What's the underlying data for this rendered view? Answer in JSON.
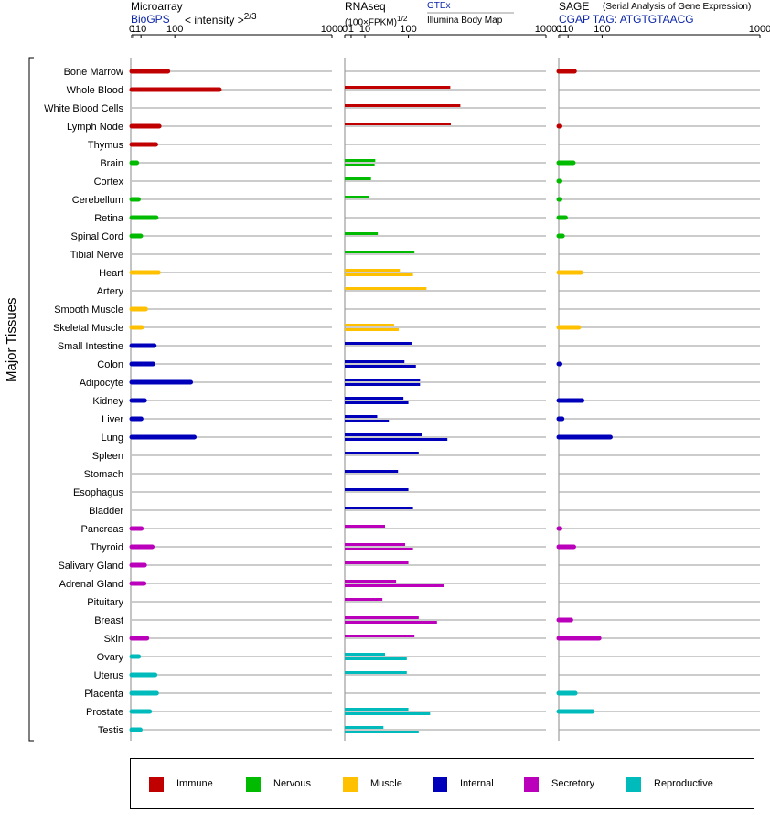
{
  "panels": {
    "microarray": {
      "title": "Microarray",
      "source": "BioGPS",
      "unit": "< intensity >",
      "unit_exp": "2/3"
    },
    "rnaseq": {
      "title": "RNAseq",
      "unit": "(100×FPKM)",
      "unit_exp": "1/2",
      "source_top": "GTEx",
      "source_bottom": "Illumina Body Map"
    },
    "sage": {
      "title": "SAGE",
      "subtitle": "(Serial Analysis of Gene Expression)",
      "tag": "CGAP TAG: ATGTGTAACG"
    }
  },
  "y_axis_label": "Major Tissues",
  "legend": [
    {
      "label": "Immune",
      "color": "#c00000"
    },
    {
      "label": "Nervous",
      "color": "#00bb00"
    },
    {
      "label": "Muscle",
      "color": "#ffc000"
    },
    {
      "label": "Internal",
      "color": "#0000bb"
    },
    {
      "label": "Secretory",
      "color": "#bb00bb"
    },
    {
      "label": "Reproductive",
      "color": "#00bbbb"
    }
  ],
  "chart_data": [
    {
      "type": "bar",
      "title": "Microarray",
      "scale": "power-2/3",
      "ticks": [
        0,
        1,
        10,
        100,
        1000
      ],
      "xlim": [
        0,
        1000
      ],
      "categories": [
        "Bone Marrow",
        "Whole Blood",
        "White Blood Cells",
        "Lymph Node",
        "Thymus",
        "Brain",
        "Cortex",
        "Cerebellum",
        "Retina",
        "Spinal Cord",
        "Tibial Nerve",
        "Heart",
        "Artery",
        "Smooth Muscle",
        "Skeletal Muscle",
        "Small Intestine",
        "Colon",
        "Adipocyte",
        "Kidney",
        "Liver",
        "Lung",
        "Spleen",
        "Stomach",
        "Esophagus",
        "Bladder",
        "Pancreas",
        "Thyroid",
        "Salivary Gland",
        "Adrenal Gland",
        "Pituitary",
        "Breast",
        "Skin",
        "Ovary",
        "Uterus",
        "Placenta",
        "Prostate",
        "Testis"
      ],
      "groups": [
        "Immune",
        "Immune",
        "Immune",
        "Immune",
        "Immune",
        "Nervous",
        "Nervous",
        "Nervous",
        "Nervous",
        "Nervous",
        "Nervous",
        "Muscle",
        "Muscle",
        "Muscle",
        "Muscle",
        "Internal",
        "Internal",
        "Internal",
        "Internal",
        "Internal",
        "Internal",
        "Internal",
        "Internal",
        "Internal",
        "Internal",
        "Secretory",
        "Secretory",
        "Secretory",
        "Secretory",
        "Secretory",
        "Secretory",
        "Secretory",
        "Reproductive",
        "Reproductive",
        "Reproductive",
        "Reproductive",
        "Reproductive"
      ],
      "values": [
        77,
        290,
        null,
        51,
        42,
        4.1,
        null,
        6.3,
        43,
        9.7,
        null,
        49,
        null,
        18.5,
        11.3,
        38,
        35,
        160,
        16.5,
        10.3,
        175,
        null,
        null,
        null,
        null,
        10.7,
        33,
        16.5,
        15.5,
        null,
        null,
        21,
        6.5,
        40,
        44,
        27,
        9
      ]
    },
    {
      "type": "bar",
      "title": "RNAseq",
      "scale": "sqrt",
      "ticks": [
        0,
        1,
        10,
        100,
        1000
      ],
      "xlim": [
        0,
        1000
      ],
      "series": [
        {
          "name": "GTEx",
          "values": [
            null,
            275,
            330,
            278,
            null,
            23,
            17,
            15,
            null,
            27,
            120,
            75,
            165,
            null,
            60,
            110,
            88,
            140,
            85,
            26,
            148,
            135,
            70,
            100,
            115,
            40,
            90,
            100,
            65,
            35,
            135,
            120,
            40,
            95,
            null,
            100,
            37
          ]
        },
        {
          "name": "Illumina Body Map",
          "values": [
            null,
            null,
            null,
            null,
            null,
            22,
            null,
            null,
            null,
            null,
            null,
            115,
            null,
            null,
            72,
            null,
            125,
            140,
            100,
            48,
            260,
            null,
            null,
            null,
            null,
            null,
            115,
            null,
            245,
            null,
            210,
            null,
            95,
            null,
            null,
            180,
            135
          ]
        }
      ]
    },
    {
      "type": "bar",
      "title": "SAGE",
      "scale": "power-2/3",
      "ticks": [
        0,
        1,
        10,
        100,
        1000
      ],
      "xlim": [
        0,
        1000
      ],
      "values": [
        22,
        null,
        null,
        0.1,
        null,
        19.5,
        0.05,
        0.05,
        6.2,
        2.6,
        null,
        36.5,
        null,
        null,
        31.5,
        null,
        0.1,
        null,
        39.5,
        2.2,
        130,
        null,
        null,
        null,
        null,
        0.1,
        20.5,
        null,
        null,
        null,
        15,
        90,
        null,
        null,
        23.5,
        68,
        null
      ]
    }
  ]
}
